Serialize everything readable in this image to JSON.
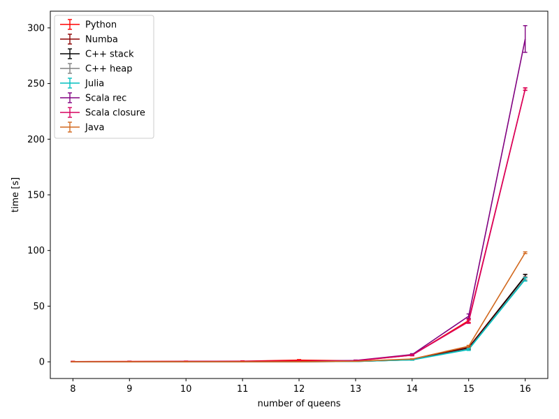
{
  "chart_data": {
    "type": "line",
    "title": "",
    "xlabel": "number of queens",
    "ylabel": "time [s]",
    "x": [
      8,
      9,
      10,
      11,
      12,
      13,
      14,
      15,
      16
    ],
    "xlim": [
      7.6,
      16.4
    ],
    "ylim": [
      -15,
      315
    ],
    "xticks": [
      8,
      9,
      10,
      11,
      12,
      13,
      14,
      15,
      16
    ],
    "yticks": [
      0,
      50,
      100,
      150,
      200,
      250,
      300
    ],
    "grid": false,
    "legend_position": "upper-left",
    "series": [
      {
        "name": "Python",
        "color": "#ff0000",
        "values": [
          0.2,
          0.3,
          0.4,
          0.6,
          1.5,
          0.9,
          6.0,
          37.0,
          245.0
        ],
        "errors": [
          0.3,
          0.3,
          0.3,
          0.3,
          0.5,
          0.4,
          0.6,
          1.5,
          1.0
        ]
      },
      {
        "name": "Numba",
        "color": "#8b0000",
        "values": [
          0.0,
          0.0,
          0.0,
          0.0,
          0.1,
          0.4,
          2.0,
          13.0,
          77.0
        ],
        "errors": [
          0.0,
          0.0,
          0.0,
          0.0,
          0.1,
          0.1,
          0.3,
          0.8,
          1.5
        ]
      },
      {
        "name": "C++ stack",
        "color": "#000000",
        "values": [
          0.0,
          0.0,
          0.0,
          0.0,
          0.1,
          0.3,
          1.8,
          12.0,
          77.0
        ],
        "errors": [
          0.0,
          0.0,
          0.0,
          0.0,
          0.1,
          0.1,
          0.3,
          0.8,
          1.5
        ]
      },
      {
        "name": "C++ heap",
        "color": "#808080",
        "values": [
          0.0,
          0.0,
          0.0,
          0.0,
          0.1,
          0.3,
          1.8,
          11.5,
          75.0
        ],
        "errors": [
          0.0,
          0.0,
          0.0,
          0.0,
          0.1,
          0.1,
          0.3,
          0.8,
          1.5
        ]
      },
      {
        "name": "Julia",
        "color": "#00bfbf",
        "values": [
          0.0,
          0.0,
          0.0,
          0.0,
          0.1,
          0.3,
          1.7,
          11.0,
          74.0
        ],
        "errors": [
          0.0,
          0.0,
          0.0,
          0.0,
          0.1,
          0.1,
          0.3,
          0.8,
          1.5
        ]
      },
      {
        "name": "Scala rec",
        "color": "#800080",
        "values": [
          0.1,
          0.2,
          0.3,
          0.4,
          0.4,
          1.2,
          6.5,
          41.0,
          290.0
        ],
        "errors": [
          0.2,
          0.2,
          0.2,
          0.2,
          0.3,
          0.4,
          0.8,
          2.0,
          12.0
        ]
      },
      {
        "name": "Scala closure",
        "color": "#d7005f",
        "values": [
          0.1,
          0.2,
          0.3,
          0.4,
          0.4,
          1.0,
          6.0,
          36.0,
          245.0
        ],
        "errors": [
          0.2,
          0.2,
          0.2,
          0.2,
          0.3,
          0.3,
          0.6,
          1.5,
          1.2
        ]
      },
      {
        "name": "Java",
        "color": "#d2691e",
        "values": [
          0.0,
          0.0,
          0.0,
          0.0,
          0.1,
          0.5,
          2.5,
          14.0,
          98.0
        ],
        "errors": [
          0.0,
          0.0,
          0.0,
          0.0,
          0.1,
          0.1,
          0.3,
          0.8,
          0.8
        ]
      }
    ]
  }
}
